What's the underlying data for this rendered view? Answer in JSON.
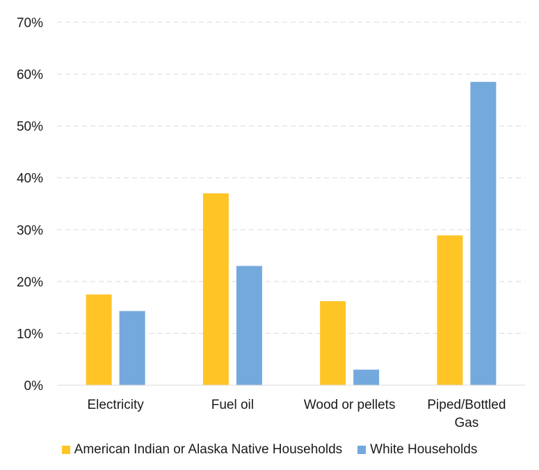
{
  "chart_data": {
    "type": "bar",
    "categories": [
      [
        "Electricity"
      ],
      [
        "Fuel oil"
      ],
      [
        "Wood or pellets"
      ],
      [
        "Piped/Bottled",
        "Gas"
      ]
    ],
    "series": [
      {
        "name": "American Indian or Alaska Native Households",
        "color": "#FFC527",
        "values": [
          17.5,
          37.0,
          16.2,
          28.9
        ]
      },
      {
        "name": "White Households",
        "color": "#74A9DD",
        "values": [
          14.3,
          23.0,
          3.0,
          58.5
        ]
      }
    ],
    "ylim": [
      0,
      70
    ],
    "yticks": [
      "0%",
      "10%",
      "20%",
      "30%",
      "40%",
      "50%",
      "60%",
      "70%"
    ],
    "grid": "horizontal dashed",
    "legend_position": "bottom"
  }
}
